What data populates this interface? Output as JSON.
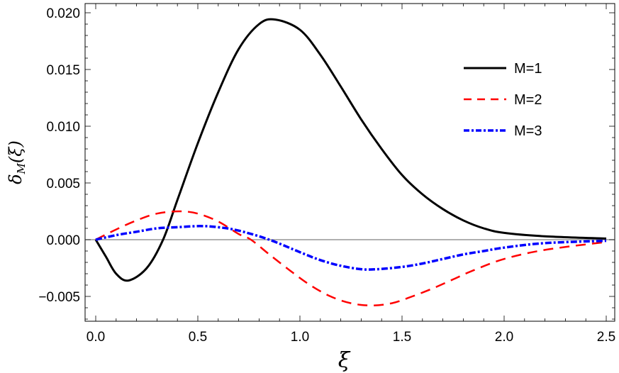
{
  "chart_data": {
    "type": "line",
    "title": "",
    "xlabel": "ξ",
    "ylabel": "δ_M(ξ)",
    "xlim": [
      -0.05,
      2.55
    ],
    "ylim": [
      -0.0072,
      0.0208
    ],
    "grid": false,
    "legend_position": "upper right (inside)",
    "x_ticks": [
      "0.0",
      "0.5",
      "1.0",
      "1.5",
      "2.0",
      "2.5"
    ],
    "y_ticks": [
      "-0.005",
      "0.000",
      "0.005",
      "0.010",
      "0.015",
      "0.020"
    ],
    "series": [
      {
        "name": "M=1",
        "color": "#000000",
        "style": "solid",
        "x": [
          0,
          0.05,
          0.1,
          0.16,
          0.25,
          0.33,
          0.4,
          0.5,
          0.6,
          0.7,
          0.8,
          0.88,
          1.0,
          1.1,
          1.2,
          1.3,
          1.4,
          1.5,
          1.6,
          1.7,
          1.8,
          1.9,
          2.0,
          2.2,
          2.5
        ],
        "values": [
          0,
          -0.0015,
          -0.003,
          -0.0036,
          -0.0025,
          0.0,
          0.0035,
          0.0085,
          0.013,
          0.0168,
          0.019,
          0.0194,
          0.0185,
          0.0163,
          0.0135,
          0.0106,
          0.008,
          0.0057,
          0.004,
          0.0027,
          0.0017,
          0.001,
          0.0006,
          0.0003,
          0.0001
        ]
      },
      {
        "name": "M=2",
        "color": "#ff0000",
        "style": "dashed",
        "x": [
          0,
          0.1,
          0.2,
          0.3,
          0.41,
          0.5,
          0.6,
          0.7,
          0.76,
          0.85,
          0.95,
          1.05,
          1.15,
          1.25,
          1.35,
          1.45,
          1.55,
          1.65,
          1.75,
          1.85,
          2.0,
          2.2,
          2.5
        ],
        "values": [
          0,
          0.0009,
          0.0017,
          0.0023,
          0.0025,
          0.0023,
          0.0016,
          0.0005,
          0.0,
          -0.0013,
          -0.0027,
          -0.004,
          -0.005,
          -0.0056,
          -0.0058,
          -0.0056,
          -0.005,
          -0.0043,
          -0.0035,
          -0.0027,
          -0.0017,
          -0.0009,
          -0.0002
        ]
      },
      {
        "name": "M=3",
        "color": "#0000ff",
        "style": "dash-dot",
        "x": [
          0,
          0.1,
          0.2,
          0.3,
          0.4,
          0.51,
          0.6,
          0.7,
          0.85,
          1.0,
          1.1,
          1.2,
          1.3,
          1.38,
          1.5,
          1.6,
          1.7,
          1.8,
          1.9,
          2.0,
          2.2,
          2.5
        ],
        "values": [
          0,
          0.0004,
          0.0007,
          0.001,
          0.0011,
          0.0012,
          0.0011,
          0.0008,
          0.0,
          -0.0011,
          -0.0018,
          -0.0023,
          -0.0026,
          -0.0026,
          -0.0024,
          -0.0021,
          -0.0017,
          -0.0013,
          -0.001,
          -0.0007,
          -0.0003,
          -0.0001
        ]
      }
    ]
  },
  "legend": {
    "items": [
      {
        "label": "M=1",
        "color": "#000000"
      },
      {
        "label": "M=2",
        "color": "#ff0000"
      },
      {
        "label": "M=3",
        "color": "#0000ff"
      }
    ]
  },
  "axes": {
    "xlabel": "ξ",
    "ylabel_main": "δ",
    "ylabel_sub": "M",
    "ylabel_arg": "(ξ)",
    "x_ticks": [
      "0.0",
      "0.5",
      "1.0",
      "1.5",
      "2.0",
      "2.5"
    ],
    "y_ticks": [
      "−0.005",
      "0.000",
      "0.005",
      "0.010",
      "0.015",
      "0.020"
    ]
  }
}
